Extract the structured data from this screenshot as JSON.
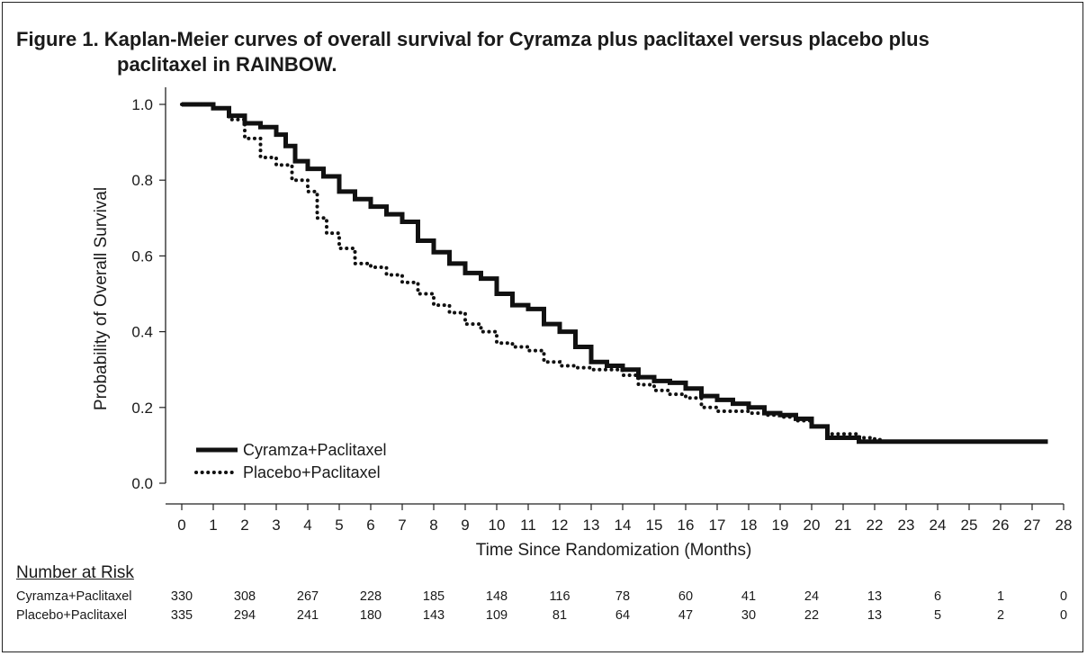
{
  "figure": {
    "title_line1": "Figure 1. Kaplan-Meier curves of overall survival for Cyramza plus paclitaxel versus placebo plus",
    "title_line2": "paclitaxel in RAINBOW."
  },
  "chart_data": {
    "type": "line",
    "title": "Figure 1. Kaplan-Meier curves of overall survival for Cyramza plus paclitaxel versus placebo plus paclitaxel in RAINBOW.",
    "xlabel": "Time Since Randomization (Months)",
    "ylabel": "Probability of Overall Survival",
    "xlim": [
      0,
      28
    ],
    "ylim": [
      0,
      1.0
    ],
    "x_ticks": [
      0,
      1,
      2,
      3,
      4,
      5,
      6,
      7,
      8,
      9,
      10,
      11,
      12,
      13,
      14,
      15,
      16,
      17,
      18,
      19,
      20,
      21,
      22,
      23,
      24,
      25,
      26,
      27,
      28
    ],
    "y_ticks": [
      0.0,
      0.2,
      0.4,
      0.6,
      0.8,
      1.0
    ],
    "y_tick_labels": [
      "0.0",
      "0.2",
      "0.4",
      "0.6",
      "0.8",
      "1.0"
    ],
    "grid": false,
    "legend_position": "bottom-left",
    "series": [
      {
        "name": "Cyramza+Paclitaxel",
        "style": "solid-thick",
        "color": "#111111",
        "x": [
          0,
          0.5,
          1.0,
          1.5,
          2.0,
          2.5,
          3.0,
          3.3,
          3.6,
          4.0,
          4.5,
          5.0,
          5.5,
          6.0,
          6.5,
          7.0,
          7.5,
          8.0,
          8.5,
          9.0,
          9.5,
          10.0,
          10.5,
          11.0,
          11.5,
          12.0,
          12.5,
          13.0,
          13.5,
          14.0,
          14.5,
          15.0,
          15.5,
          16.0,
          16.5,
          17.0,
          17.5,
          18.0,
          18.5,
          19.0,
          19.5,
          20.0,
          20.5,
          21.0,
          21.3,
          21.5,
          22.0,
          23.0,
          24.0,
          25.0,
          26.0,
          27.0,
          27.5
        ],
        "y": [
          1.0,
          1.0,
          0.99,
          0.97,
          0.95,
          0.94,
          0.92,
          0.89,
          0.85,
          0.83,
          0.81,
          0.77,
          0.75,
          0.73,
          0.71,
          0.69,
          0.64,
          0.61,
          0.58,
          0.555,
          0.54,
          0.5,
          0.47,
          0.46,
          0.42,
          0.4,
          0.36,
          0.32,
          0.31,
          0.3,
          0.28,
          0.27,
          0.265,
          0.25,
          0.23,
          0.22,
          0.21,
          0.2,
          0.185,
          0.18,
          0.17,
          0.15,
          0.12,
          0.12,
          0.12,
          0.11,
          0.11,
          0.11,
          0.11,
          0.11,
          0.11,
          0.11,
          0.11
        ]
      },
      {
        "name": "Placebo+Paclitaxel",
        "style": "dotted",
        "color": "#111111",
        "x": [
          0,
          0.5,
          1.0,
          1.5,
          2.0,
          2.5,
          3.0,
          3.5,
          4.0,
          4.3,
          4.6,
          5.0,
          5.5,
          6.0,
          6.5,
          7.0,
          7.5,
          8.0,
          8.5,
          9.0,
          9.5,
          10.0,
          10.5,
          11.0,
          11.5,
          12.0,
          12.5,
          13.0,
          13.5,
          14.0,
          14.5,
          15.0,
          15.5,
          16.0,
          16.5,
          17.0,
          17.5,
          18.0,
          18.5,
          19.0,
          19.5,
          20.0,
          20.5,
          21.0,
          21.5,
          22.0,
          22.2
        ],
        "y": [
          1.0,
          1.0,
          0.99,
          0.96,
          0.91,
          0.86,
          0.84,
          0.8,
          0.77,
          0.7,
          0.66,
          0.62,
          0.58,
          0.57,
          0.55,
          0.53,
          0.5,
          0.47,
          0.45,
          0.42,
          0.4,
          0.37,
          0.36,
          0.35,
          0.32,
          0.31,
          0.305,
          0.3,
          0.3,
          0.285,
          0.26,
          0.245,
          0.235,
          0.225,
          0.2,
          0.19,
          0.19,
          0.185,
          0.18,
          0.175,
          0.165,
          0.15,
          0.13,
          0.13,
          0.12,
          0.115,
          0.115
        ]
      }
    ]
  },
  "risk_table": {
    "heading": "Number at Risk",
    "timepoints": [
      0,
      2,
      4,
      6,
      8,
      10,
      12,
      14,
      16,
      18,
      20,
      22,
      24,
      26,
      28
    ],
    "rows": [
      {
        "label": "Cyramza+Paclitaxel",
        "values": [
          "330",
          "308",
          "267",
          "228",
          "185",
          "148",
          "116",
          "78",
          "60",
          "41",
          "24",
          "13",
          "6",
          "1",
          "0"
        ]
      },
      {
        "label": "Placebo+Paclitaxel",
        "values": [
          "335",
          "294",
          "241",
          "180",
          "143",
          "109",
          "81",
          "64",
          "47",
          "30",
          "22",
          "13",
          "5",
          "2",
          "0"
        ]
      }
    ]
  }
}
